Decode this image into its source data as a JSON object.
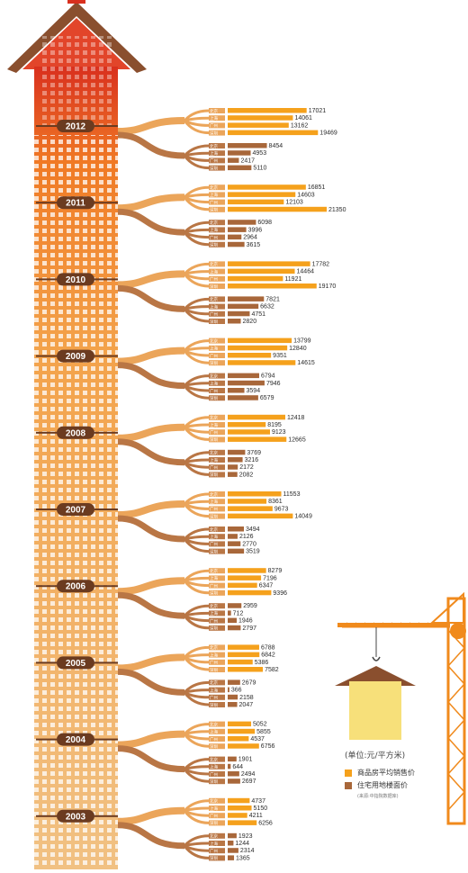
{
  "chart_data": {
    "type": "bar",
    "title": "",
    "unit_label": "(单位:元/平方米)",
    "series": [
      {
        "name": "商品房平均销售价",
        "color": "#f5a11c"
      },
      {
        "name": "住宅用地楼面价",
        "color": "#a8673a"
      }
    ],
    "cities": [
      "北京",
      "上海",
      "广州",
      "深圳"
    ],
    "years": [
      {
        "year": "2012",
        "sale_price": [
          17021,
          14061,
          13162,
          19469
        ],
        "land_price": [
          8454,
          4953,
          2417,
          5110
        ]
      },
      {
        "year": "2011",
        "sale_price": [
          16851,
          14603,
          12103,
          21350
        ],
        "land_price": [
          6098,
          3996,
          2964,
          3615
        ]
      },
      {
        "year": "2010",
        "sale_price": [
          17782,
          14464,
          11921,
          19170
        ],
        "land_price": [
          7821,
          6632,
          4751,
          2820
        ]
      },
      {
        "year": "2009",
        "sale_price": [
          13799,
          12840,
          9351,
          14615
        ],
        "land_price": [
          6794,
          7946,
          3594,
          6579
        ]
      },
      {
        "year": "2008",
        "sale_price": [
          12418,
          8195,
          9123,
          12665
        ],
        "land_price": [
          3769,
          3216,
          2172,
          2082
        ]
      },
      {
        "year": "2007",
        "sale_price": [
          11553,
          8361,
          9673,
          14049
        ],
        "land_price": [
          3494,
          2126,
          2770,
          3519
        ]
      },
      {
        "year": "2006",
        "sale_price": [
          8279,
          7196,
          6347,
          9396
        ],
        "land_price": [
          2959,
          712,
          1946,
          2797
        ]
      },
      {
        "year": "2005",
        "sale_price": [
          6788,
          6842,
          5386,
          7582
        ],
        "land_price": [
          2679,
          366,
          2158,
          2047
        ]
      },
      {
        "year": "2004",
        "sale_price": [
          5052,
          5855,
          4537,
          6756
        ],
        "land_price": [
          1901,
          644,
          2494,
          2697
        ]
      },
      {
        "year": "2003",
        "sale_price": [
          4737,
          5150,
          4211,
          6256
        ],
        "land_price": [
          1923,
          1244,
          2314,
          1365
        ]
      }
    ]
  },
  "legend": {
    "unit": "(单位:元/平方米)",
    "items": [
      {
        "label": "商品房平均销售价",
        "color": "#f5a11c"
      },
      {
        "label": "住宅用地楼面价",
        "color": "#a8673a"
      }
    ],
    "source": "(来源:中指院数据库)"
  }
}
